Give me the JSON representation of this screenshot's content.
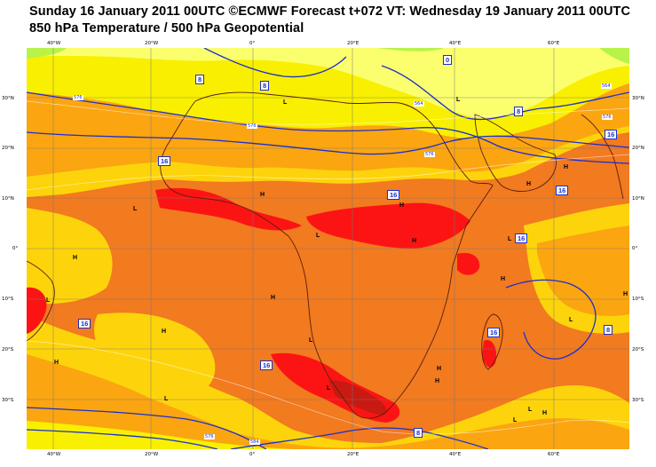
{
  "header": {
    "line1": "Sunday 16 January 2011 00UTC ©ECMWF Forecast t+072 VT: Wednesday 19 January 2011 00UTC",
    "line2": "850 hPa Temperature / 500 hPa Geopotential"
  },
  "axes": {
    "lon_ticks": [
      "40°W",
      "20°W",
      "0°",
      "20°E",
      "40°E",
      "60°E"
    ],
    "lat_ticks_left": [
      "30°N",
      "20°N",
      "10°N",
      "0°",
      "10°S",
      "20°S",
      "30°S"
    ],
    "lat_ticks_right": [
      "30°N",
      "20°N",
      "10°N",
      "0°",
      "10°S",
      "20°S",
      "30°S"
    ]
  },
  "isotherm_labels": [
    "8",
    "8",
    "0",
    "8",
    "16",
    "16",
    "16",
    "16",
    "16",
    "16",
    "16",
    "16",
    "8"
  ],
  "geopotential_labels": [
    "576",
    "576",
    "576",
    "564",
    "564",
    "576",
    "576",
    "584"
  ],
  "pressure_centres": [
    {
      "label": "L"
    },
    {
      "label": "L"
    },
    {
      "label": "H"
    },
    {
      "label": "L"
    },
    {
      "label": "H"
    },
    {
      "label": "H"
    },
    {
      "label": "L"
    },
    {
      "label": "H"
    },
    {
      "label": "H"
    },
    {
      "label": "H"
    },
    {
      "label": "L"
    },
    {
      "label": "H"
    },
    {
      "label": "L"
    },
    {
      "label": "H"
    },
    {
      "label": "L"
    },
    {
      "label": "H"
    },
    {
      "label": "H"
    },
    {
      "label": "L"
    },
    {
      "label": "H"
    },
    {
      "label": "L"
    },
    {
      "label": "H"
    },
    {
      "label": "L"
    },
    {
      "label": "H"
    },
    {
      "label": "L"
    },
    {
      "label": "H"
    },
    {
      "label": "L"
    }
  ],
  "colors": {
    "yellow_green": "#b8f34a",
    "pale_yellow": "#fbff6e",
    "yellow": "#f8f000",
    "gold": "#fdd40b",
    "orange": "#fba511",
    "dark_orange": "#f27a1f",
    "red": "#fc1414",
    "dark_red": "#c81a12",
    "coast": "#5a1e10",
    "contour": "#1a2fcc",
    "grid": "#777777"
  }
}
